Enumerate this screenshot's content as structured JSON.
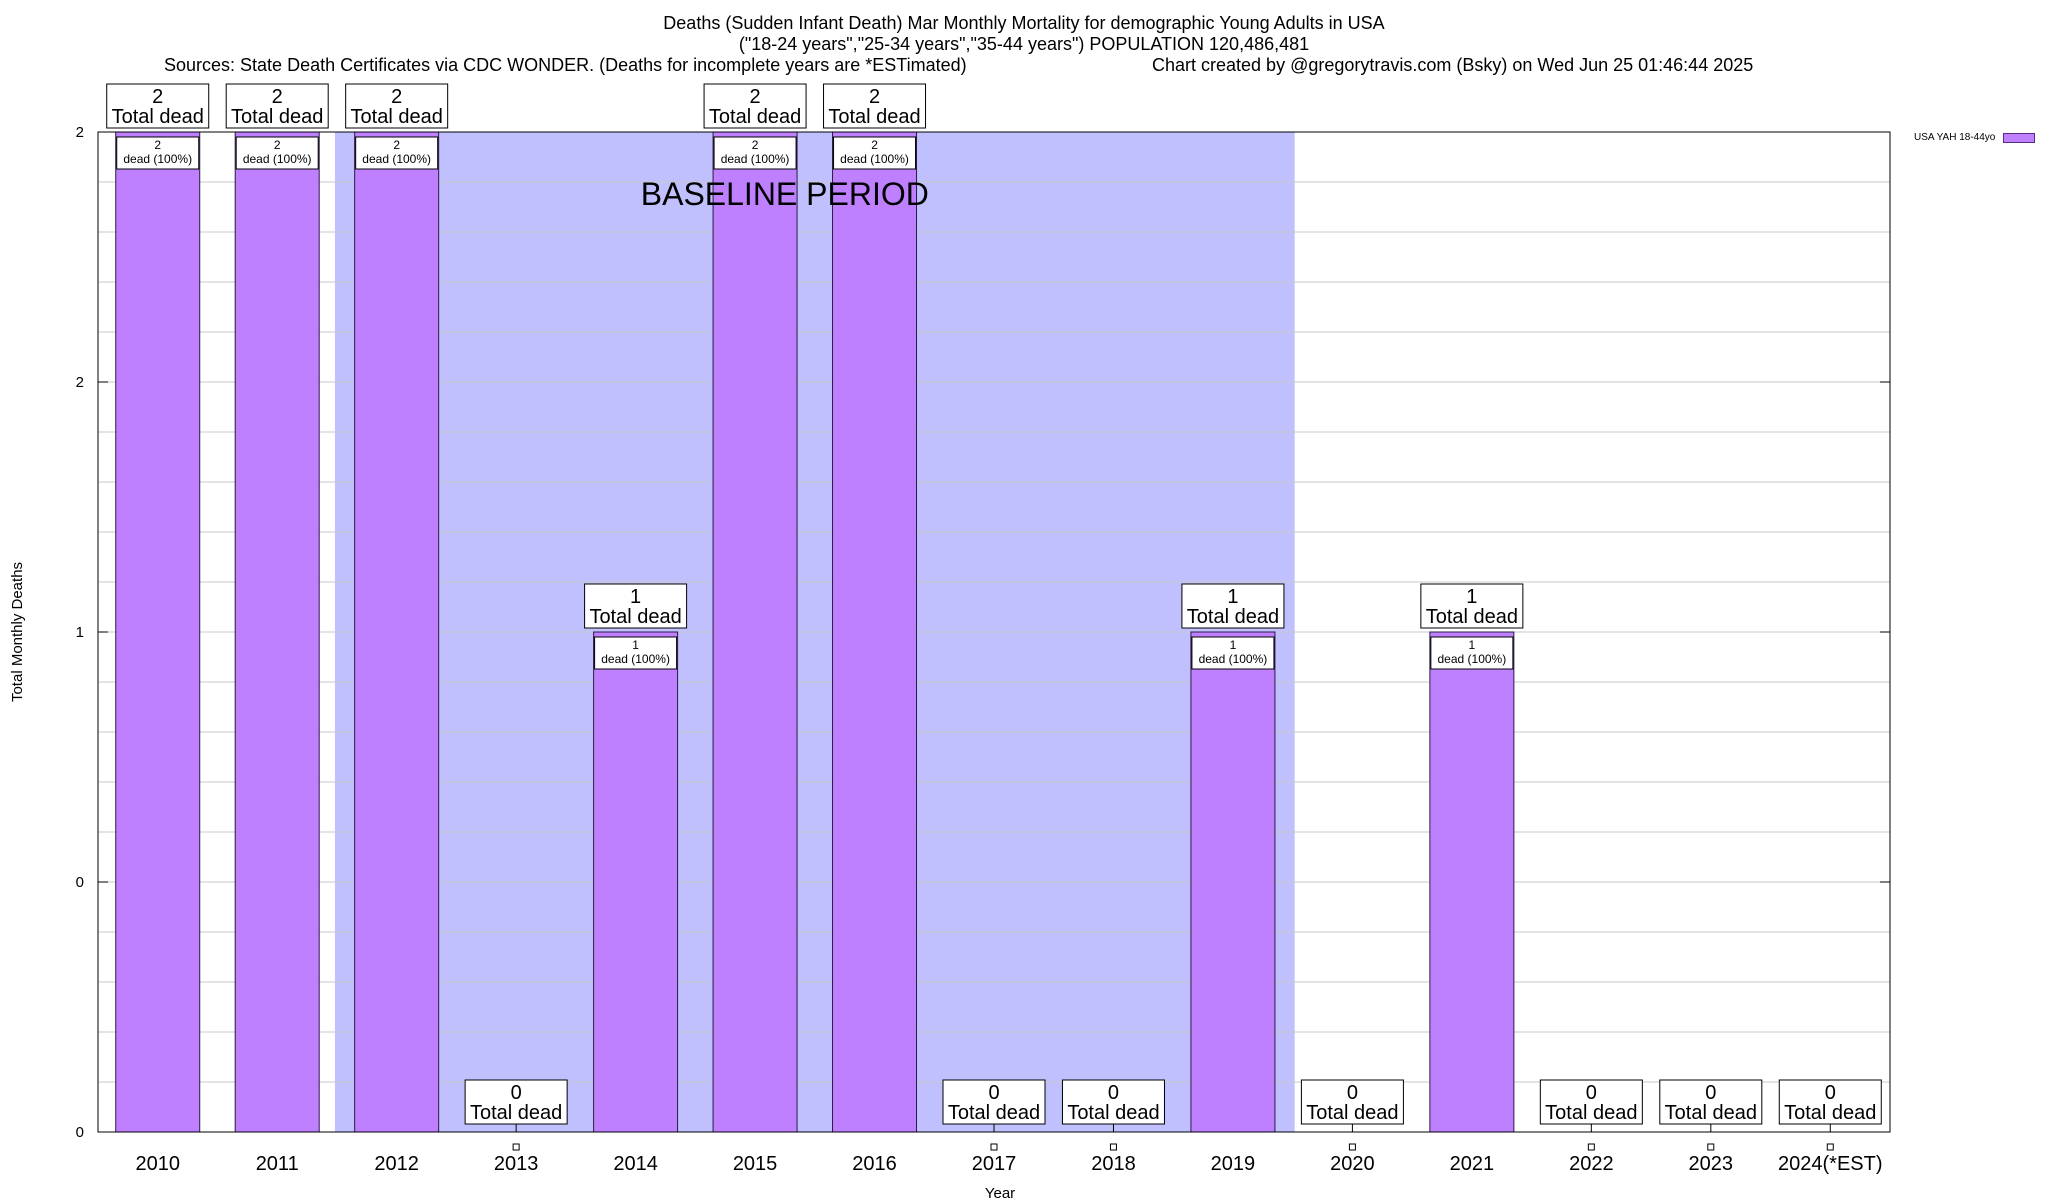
{
  "header": {
    "title_line1": "Deaths (Sudden Infant Death) Mar Monthly Mortality for demographic Young Adults in USA",
    "title_line2": "(\"18-24 years\",\"25-34 years\",\"35-44 years\") POPULATION 120,486,481",
    "sources": "Sources: State Death Certificates via CDC WONDER. (Deaths for incomplete years are *ESTimated)",
    "credit": "Chart created by @gregorytravis.com (Bsky) on Wed Jun 25 01:46:44 2025"
  },
  "legend": {
    "label": "USA YAH 18-44yo"
  },
  "colors": {
    "bar": "#bf80ff",
    "bar_border": "#2b1a40",
    "baseline_shade": "#c0c0ff",
    "grid": "#c8c8c8"
  },
  "chart_data": {
    "type": "bar",
    "title": "Deaths (Sudden Infant Death) Mar Monthly Mortality for demographic Young Adults in USA",
    "xlabel": "Year",
    "ylabel": "Total Monthly Deaths",
    "categories": [
      "2010",
      "2011",
      "2012",
      "2013",
      "2014",
      "2015",
      "2016",
      "2017",
      "2018",
      "2019",
      "2020",
      "2021",
      "2022",
      "2023",
      "2024(*EST)"
    ],
    "series": [
      {
        "name": "USA YAH 18-44yo",
        "values": [
          2,
          2,
          2,
          0,
          1,
          2,
          2,
          0,
          0,
          1,
          0,
          1,
          0,
          0,
          0
        ]
      }
    ],
    "ylim": [
      0,
      2
    ],
    "ytick_labels": [
      "0",
      "0",
      "1",
      "2",
      "2"
    ],
    "ytick_values": [
      0,
      0.5,
      1,
      1.5,
      2
    ],
    "total_label_suffix": "Total dead",
    "inner_label_suffix": "dead (100%)",
    "baseline_period": {
      "label": "BASELINE PERIOD",
      "from": "2012",
      "to": "2019"
    },
    "grid": true,
    "legend_position": "top-right"
  }
}
